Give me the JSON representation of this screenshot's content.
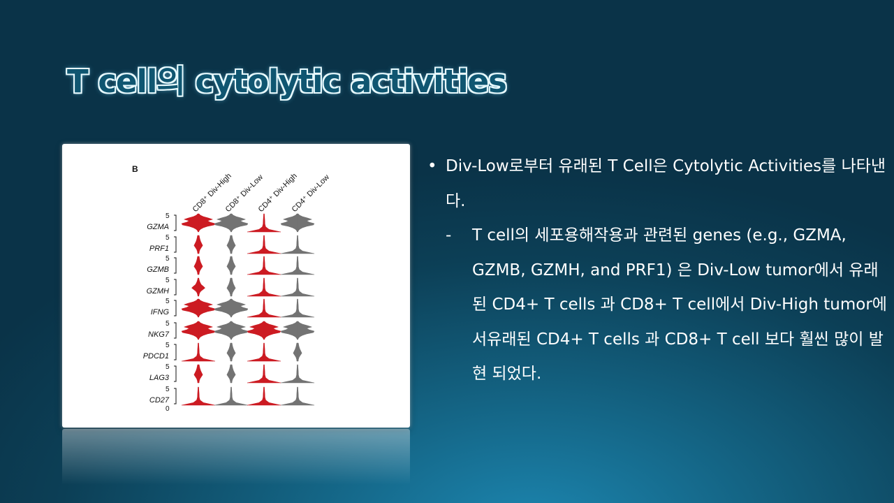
{
  "slide": {
    "title": "T cell의 cytolytic activities"
  },
  "figure": {
    "panel_label": "B",
    "columns": [
      {
        "label": "CD8⁺ Div-High",
        "color": "#cc1b22"
      },
      {
        "label": "CD8⁺ Div-Low",
        "color": "#737373"
      },
      {
        "label": "CD4⁺ Div-High",
        "color": "#cc1b22"
      },
      {
        "label": "CD4⁺ Div-Low",
        "color": "#737373"
      }
    ],
    "rows": [
      {
        "gene": "GZMA",
        "scale_max": "5"
      },
      {
        "gene": "PRF1",
        "scale_max": "5"
      },
      {
        "gene": "GZMB",
        "scale_max": "5"
      },
      {
        "gene": "GZMH",
        "scale_max": "5"
      },
      {
        "gene": "IFNG",
        "scale_max": "5"
      },
      {
        "gene": "NKG7",
        "scale_max": "5"
      },
      {
        "gene": "PDCD1",
        "scale_max": "5"
      },
      {
        "gene": "LAG3",
        "scale_max": "5"
      },
      {
        "gene": "CD27",
        "scale_max": "5",
        "scale_min": "0"
      }
    ]
  },
  "bullets": {
    "main": "Div-Low로부터 유래된 T Cell은 Cytolytic Activities를 나타낸다.",
    "sub_dash": "-",
    "sub": "T cell의 세포용해작용과 관련된 genes (e.g., GZMA, GZMB, GZMH, and PRF1) 은 Div-Low tumor에서 유래된 CD4+ T cells 과 CD8+ T cell에서 Div-High tumor에서유래된 CD4+ T cells 과 CD8+ T cell 보다 훨씬 많이 발현 되었다."
  },
  "colors": {
    "div_high": "#cc1b22",
    "div_low": "#737373",
    "title_fill": "#0f5671",
    "title_outline": "#e9fbff"
  }
}
